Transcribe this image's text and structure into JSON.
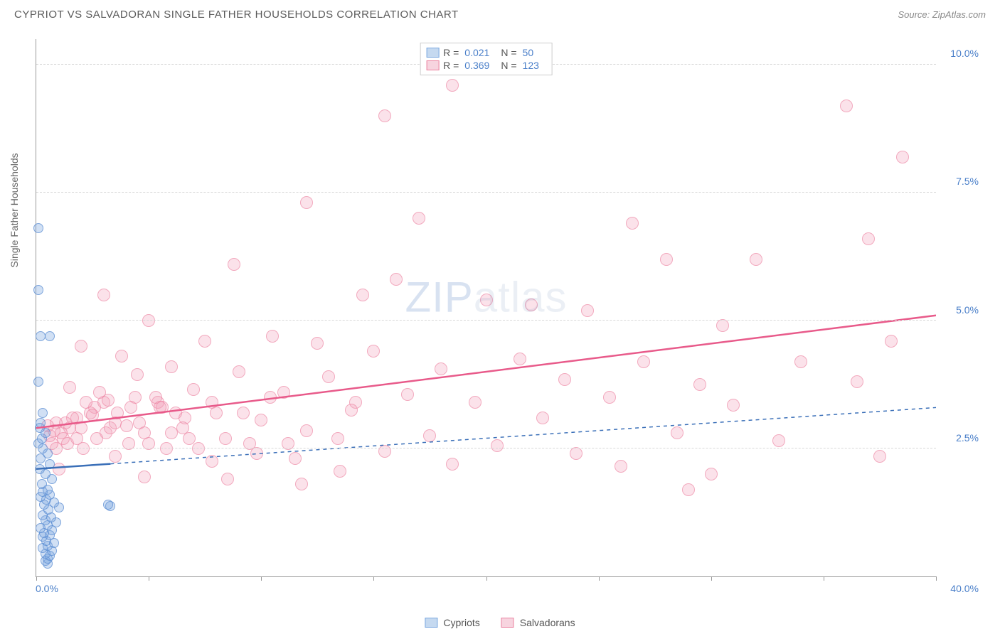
{
  "header": {
    "title": "CYPRIOT VS SALVADORAN SINGLE FATHER HOUSEHOLDS CORRELATION CHART",
    "source": "Source: ZipAtlas.com"
  },
  "watermark": {
    "zip": "ZIP",
    "atlas": "atlas"
  },
  "chart": {
    "type": "scatter",
    "y_axis_label": "Single Father Households",
    "xlim": [
      0,
      40
    ],
    "ylim": [
      0,
      10.5
    ],
    "x_ticks": [
      0,
      5,
      10,
      15,
      20,
      25,
      30,
      35,
      40
    ],
    "x_tick_labels": {
      "0": "0.0%",
      "40": "40.0%"
    },
    "y_ticks": [
      2.5,
      5.0,
      7.5,
      10.0
    ],
    "y_tick_labels": [
      "2.5%",
      "5.0%",
      "7.5%",
      "10.0%"
    ],
    "grid_color": "#d8d8d8",
    "background_color": "#ffffff",
    "axis_color": "#999999",
    "tick_label_color": "#4a7fc9",
    "y_label_fontsize": 14,
    "tick_fontsize": 14
  },
  "series": [
    {
      "name": "Cypriots",
      "marker_color_fill": "rgba(122,167,224,0.35)",
      "marker_color_stroke": "rgba(90,140,210,0.7)",
      "marker_size": 14,
      "legend_swatch_fill": "#c5d9f0",
      "legend_swatch_border": "#7aa7e0",
      "R": "0.021",
      "N": "50",
      "trend": {
        "x1": 0,
        "y1": 2.1,
        "x2": 3.3,
        "y2": 2.2,
        "ext_x1": 3.3,
        "ext_y1": 2.2,
        "ext_x2": 40,
        "ext_y2": 3.3,
        "color": "#3a6fb8",
        "width": 2.5,
        "dash": "5,5"
      },
      "points": [
        [
          0.1,
          6.8
        ],
        [
          0.1,
          5.6
        ],
        [
          0.2,
          4.7
        ],
        [
          0.6,
          4.7
        ],
        [
          0.1,
          3.8
        ],
        [
          0.3,
          3.2
        ],
        [
          0.2,
          3.0
        ],
        [
          0.15,
          2.9
        ],
        [
          0.4,
          2.8
        ],
        [
          0.25,
          2.7
        ],
        [
          0.1,
          2.6
        ],
        [
          0.3,
          2.5
        ],
        [
          0.5,
          2.4
        ],
        [
          0.2,
          2.3
        ],
        [
          0.6,
          2.2
        ],
        [
          0.15,
          2.1
        ],
        [
          0.4,
          2.0
        ],
        [
          0.7,
          1.9
        ],
        [
          0.25,
          1.8
        ],
        [
          0.5,
          1.7
        ],
        [
          0.3,
          1.65
        ],
        [
          0.6,
          1.6
        ],
        [
          0.2,
          1.55
        ],
        [
          0.45,
          1.5
        ],
        [
          0.8,
          1.45
        ],
        [
          0.35,
          1.4
        ],
        [
          1.0,
          1.35
        ],
        [
          0.55,
          1.3
        ],
        [
          3.2,
          1.4
        ],
        [
          3.3,
          1.38
        ],
        [
          0.3,
          1.2
        ],
        [
          0.65,
          1.15
        ],
        [
          0.4,
          1.1
        ],
        [
          0.9,
          1.05
        ],
        [
          0.5,
          1.0
        ],
        [
          0.2,
          0.95
        ],
        [
          0.7,
          0.9
        ],
        [
          0.35,
          0.85
        ],
        [
          0.6,
          0.8
        ],
        [
          0.3,
          0.78
        ],
        [
          0.45,
          0.7
        ],
        [
          0.8,
          0.65
        ],
        [
          0.5,
          0.6
        ],
        [
          0.3,
          0.55
        ],
        [
          0.7,
          0.5
        ],
        [
          0.4,
          0.45
        ],
        [
          0.6,
          0.4
        ],
        [
          0.5,
          0.35
        ],
        [
          0.4,
          0.3
        ],
        [
          0.5,
          0.25
        ]
      ]
    },
    {
      "name": "Salvadorans",
      "marker_color_fill": "rgba(242,160,185,0.3)",
      "marker_color_stroke": "rgba(235,130,160,0.6)",
      "marker_size": 18,
      "legend_swatch_fill": "#f7d4df",
      "legend_swatch_border": "#eb82a0",
      "R": "0.369",
      "N": "123",
      "trend": {
        "x1": 0,
        "y1": 2.9,
        "x2": 40,
        "y2": 5.1,
        "color": "#e85a8a",
        "width": 2.5,
        "dash": "none"
      },
      "points": [
        [
          18.5,
          9.6
        ],
        [
          15.5,
          9.0
        ],
        [
          36.0,
          9.2
        ],
        [
          38.5,
          8.2
        ],
        [
          12.0,
          7.3
        ],
        [
          17.0,
          7.0
        ],
        [
          26.5,
          6.9
        ],
        [
          37.0,
          6.6
        ],
        [
          28.0,
          6.2
        ],
        [
          32.0,
          6.2
        ],
        [
          8.8,
          6.1
        ],
        [
          16.0,
          5.8
        ],
        [
          3.0,
          5.5
        ],
        [
          14.5,
          5.5
        ],
        [
          20.0,
          5.4
        ],
        [
          22.0,
          5.3
        ],
        [
          0.5,
          2.95
        ],
        [
          0.8,
          2.85
        ],
        [
          0.6,
          2.75
        ],
        [
          24.5,
          5.2
        ],
        [
          5.0,
          5.0
        ],
        [
          30.5,
          4.9
        ],
        [
          10.5,
          4.7
        ],
        [
          38.0,
          4.6
        ],
        [
          7.5,
          4.6
        ],
        [
          12.5,
          4.55
        ],
        [
          2.0,
          4.5
        ],
        [
          15.0,
          4.4
        ],
        [
          3.8,
          4.3
        ],
        [
          21.5,
          4.25
        ],
        [
          27.0,
          4.2
        ],
        [
          34.0,
          4.2
        ],
        [
          6.0,
          4.1
        ],
        [
          18.0,
          4.05
        ],
        [
          9.0,
          4.0
        ],
        [
          4.5,
          3.95
        ],
        [
          13.0,
          3.9
        ],
        [
          23.5,
          3.85
        ],
        [
          36.5,
          3.8
        ],
        [
          29.5,
          3.75
        ],
        [
          1.5,
          3.7
        ],
        [
          7.0,
          3.65
        ],
        [
          11.0,
          3.6
        ],
        [
          16.5,
          3.55
        ],
        [
          25.5,
          3.5
        ],
        [
          3.2,
          3.45
        ],
        [
          19.5,
          3.4
        ],
        [
          31.0,
          3.35
        ],
        [
          5.5,
          3.3
        ],
        [
          14.0,
          3.25
        ],
        [
          8.0,
          3.2
        ],
        [
          2.5,
          3.15
        ],
        [
          22.5,
          3.1
        ],
        [
          10.0,
          3.05
        ],
        [
          0.9,
          3.0
        ],
        [
          4.0,
          2.95
        ],
        [
          6.5,
          2.9
        ],
        [
          12.0,
          2.85
        ],
        [
          28.5,
          2.8
        ],
        [
          17.5,
          2.75
        ],
        [
          1.8,
          2.7
        ],
        [
          33.0,
          2.65
        ],
        [
          9.5,
          2.6
        ],
        [
          20.5,
          2.55
        ],
        [
          5.8,
          2.5
        ],
        [
          15.5,
          2.45
        ],
        [
          24.0,
          2.4
        ],
        [
          3.5,
          2.35
        ],
        [
          11.5,
          2.3
        ],
        [
          37.5,
          2.35
        ],
        [
          7.8,
          2.25
        ],
        [
          18.5,
          2.2
        ],
        [
          26.0,
          2.15
        ],
        [
          1.0,
          2.1
        ],
        [
          13.5,
          2.05
        ],
        [
          30.0,
          2.0
        ],
        [
          4.8,
          1.95
        ],
        [
          8.5,
          1.9
        ],
        [
          1.3,
          3.0
        ],
        [
          1.6,
          3.1
        ],
        [
          2.2,
          3.4
        ],
        [
          2.8,
          3.6
        ],
        [
          3.5,
          3.0
        ],
        [
          4.2,
          3.3
        ],
        [
          4.8,
          2.8
        ],
        [
          5.3,
          3.5
        ],
        [
          6.2,
          3.2
        ],
        [
          6.8,
          2.7
        ],
        [
          1.1,
          2.8
        ],
        [
          1.4,
          2.6
        ],
        [
          11.8,
          1.8
        ],
        [
          2.0,
          2.9
        ],
        [
          2.4,
          3.2
        ],
        [
          2.7,
          2.7
        ],
        [
          3.0,
          3.4
        ],
        [
          3.3,
          2.9
        ],
        [
          29.0,
          1.7
        ],
        [
          4.4,
          3.5
        ],
        [
          5.0,
          2.6
        ],
        [
          5.6,
          3.3
        ],
        [
          6.0,
          2.8
        ],
        [
          6.6,
          3.1
        ],
        [
          7.2,
          2.5
        ],
        [
          7.8,
          3.4
        ],
        [
          8.4,
          2.7
        ],
        [
          9.2,
          3.2
        ],
        [
          9.8,
          2.4
        ],
        [
          10.4,
          3.5
        ],
        [
          11.2,
          2.6
        ],
        [
          0.7,
          2.6
        ],
        [
          13.4,
          2.7
        ],
        [
          14.2,
          3.4
        ],
        [
          0.9,
          2.5
        ],
        [
          1.2,
          2.7
        ],
        [
          1.5,
          2.9
        ],
        [
          1.8,
          3.1
        ],
        [
          2.1,
          2.5
        ],
        [
          2.6,
          3.3
        ],
        [
          3.1,
          2.8
        ],
        [
          3.6,
          3.2
        ],
        [
          4.1,
          2.6
        ],
        [
          4.6,
          3.0
        ],
        [
          5.4,
          3.4
        ]
      ]
    }
  ],
  "legend_bottom": [
    {
      "label": "Cypriots",
      "fill": "#c5d9f0",
      "border": "#7aa7e0"
    },
    {
      "label": "Salvadorans",
      "fill": "#f7d4df",
      "border": "#eb82a0"
    }
  ]
}
